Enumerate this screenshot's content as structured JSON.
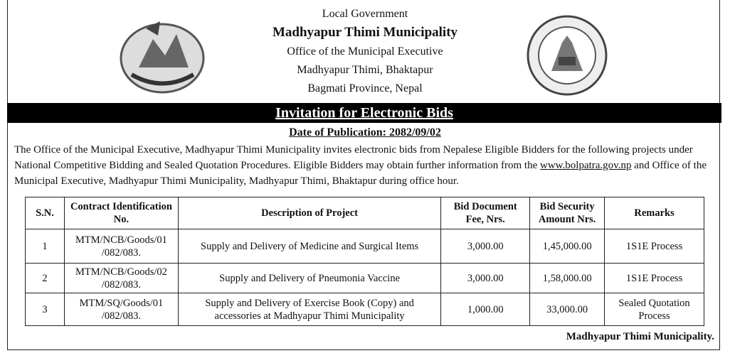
{
  "header": {
    "line1": "Local Government",
    "title": "Madhyapur Thimi Municipality",
    "office": "Office of the Municipal Executive",
    "address": "Madhyapur Thimi, Bhaktapur",
    "province": "Bagmati Province, Nepal"
  },
  "banner": "Invitation for Electronic Bids",
  "date": "Date of Publication: 2082/09/02",
  "body": {
    "before": "The Office of the Municipal Executive, Madhyapur Thimi Municipality invites electronic bids from Nepalese  Eligible Bidders for the following projects under National Competitive Bidding and Sealed Quotation Procedures. Eligible Bidders may obtain further information from the",
    "link": "www.bolpatra.gov.np",
    "after": "and Office of the Municipal Executive, Madhyapur Thimi Municipality, Madhyapur Thimi, Bhaktapur during office hour."
  },
  "table": {
    "headers": [
      "S.N.",
      "Contract Identification No.",
      "Description of Project",
      "Bid Document Fee, Nrs.",
      "Bid Security Amount Nrs.",
      "Remarks"
    ],
    "rows": [
      [
        "1",
        "MTM/NCB/Goods/01 /082/083.",
        "Supply and Delivery of Medicine and Surgical Items",
        "3,000.00",
        "1,45,000.00",
        "1S1E Process"
      ],
      [
        "2",
        "MTM/NCB/Goods/02 /082/083.",
        "Supply and Delivery of Pneumonia Vaccine",
        "3,000.00",
        "1,58,000.00",
        "1S1E Process"
      ],
      [
        "3",
        "MTM/SQ/Goods/01 /082/083.",
        "Supply and Delivery of Exercise Book (Copy) and accessories at Madhyapur Thimi Municipality",
        "1,000.00",
        "33,000.00",
        "Sealed Quotation Process"
      ]
    ]
  },
  "footer": "Madhyapur Thimi Municipality."
}
